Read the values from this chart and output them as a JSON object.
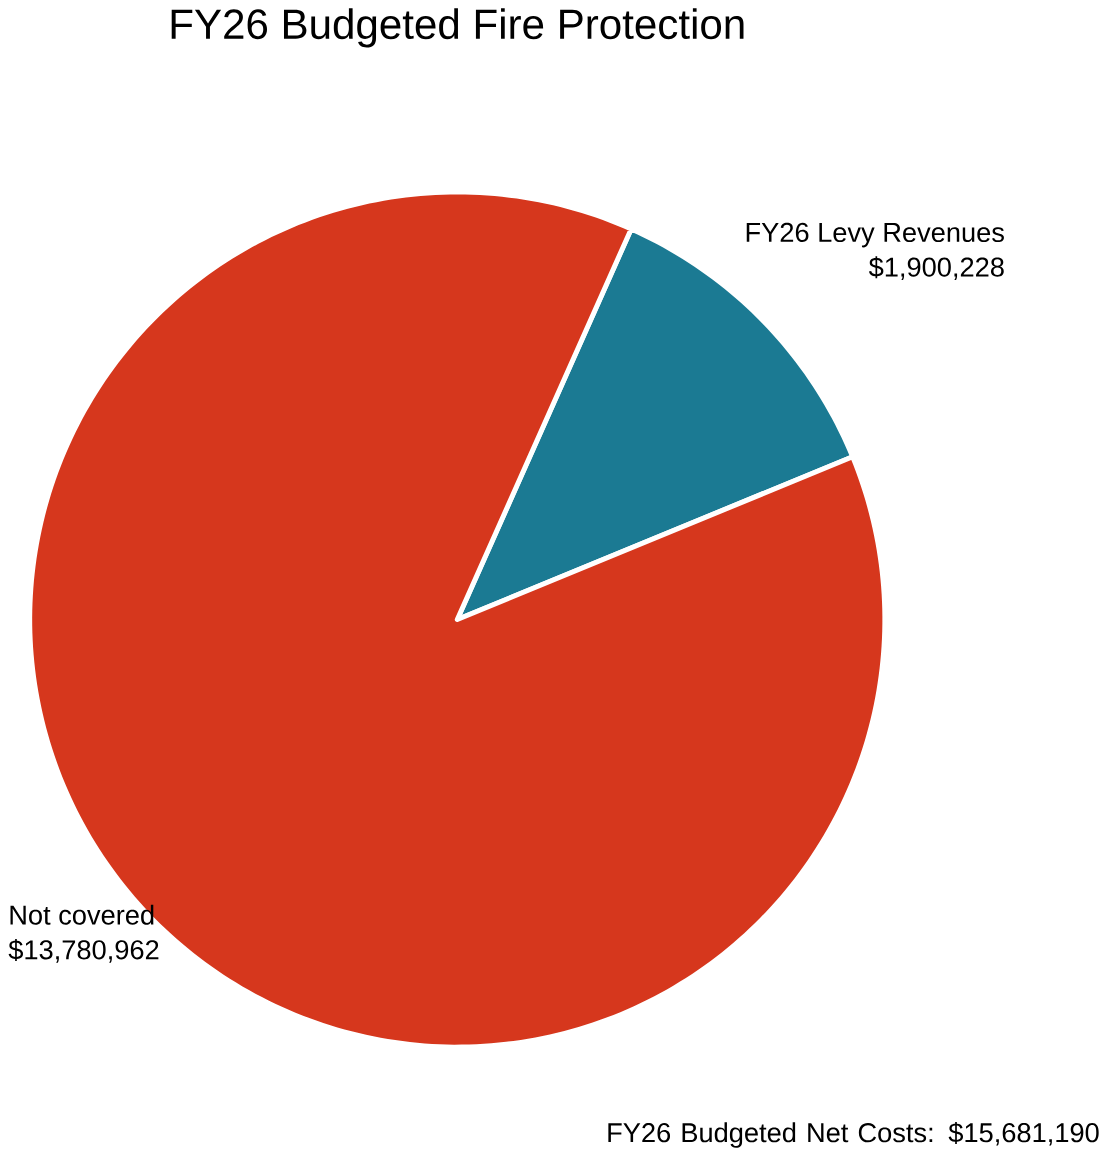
{
  "chart_data": {
    "type": "pie",
    "title": "FY26 Budgeted Fire Protection",
    "categories": [
      "FY26 Levy Revenues",
      "Not covered"
    ],
    "values": [
      1900228,
      13780962
    ],
    "colors": [
      "#1b7a93",
      "#d6371d"
    ],
    "value_labels": [
      "$1,900,228",
      "$13,780,962"
    ],
    "annotations": [
      "FY26 Budgeted Net Costs: $15,681,190"
    ]
  }
}
